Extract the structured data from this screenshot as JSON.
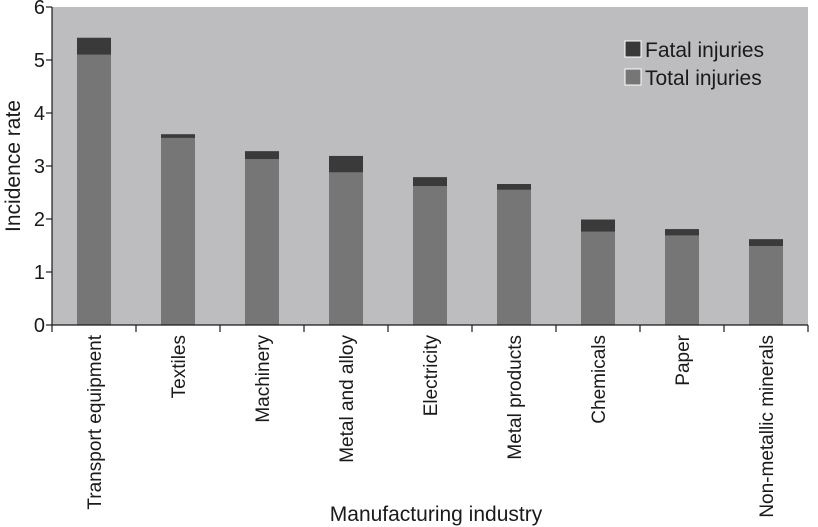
{
  "chart_data": {
    "type": "bar",
    "stacked": true,
    "title": "",
    "xlabel": "Manufacturing industry",
    "ylabel": "Incidence rate",
    "ylim": [
      0,
      6
    ],
    "yticks": [
      0,
      1,
      2,
      3,
      4,
      5,
      6
    ],
    "grid": false,
    "legend_position": "top-right",
    "categories": [
      "Transport equipment",
      "Textiles",
      "Machinery",
      "Metal and alloy",
      "Electricity",
      "Metal products",
      "Chemicals",
      "Paper",
      "Non-metallic minerals"
    ],
    "series": [
      {
        "name": "Total injuries",
        "color": "#767676",
        "values": [
          5.1,
          3.53,
          3.13,
          2.88,
          2.62,
          2.55,
          1.76,
          1.69,
          1.49
        ]
      },
      {
        "name": "Fatal injuries",
        "color": "#3a3a3a",
        "values": [
          0.32,
          0.07,
          0.15,
          0.31,
          0.17,
          0.11,
          0.23,
          0.12,
          0.13
        ]
      }
    ],
    "colors": {
      "plot_background": "#bdbdbf",
      "axis": "#1a1a1a"
    }
  }
}
